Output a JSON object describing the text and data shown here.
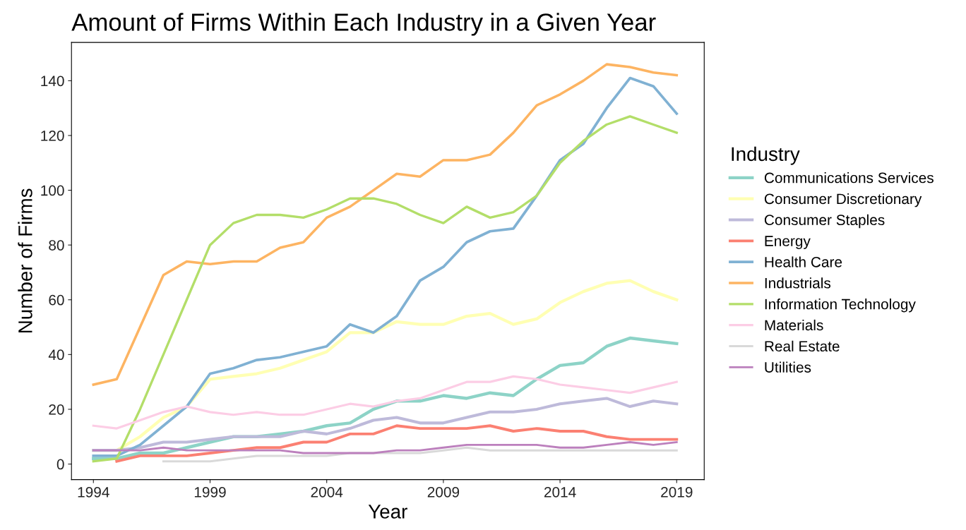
{
  "chart_data": {
    "type": "line",
    "title": "Amount of Firms Within Each Industry in a Given Year",
    "xlabel": "Year",
    "ylabel": "Number of Firms",
    "legend_title": "Industry",
    "legend": "right",
    "grid": false,
    "x": [
      1994,
      1995,
      1996,
      1997,
      1998,
      1999,
      2000,
      2001,
      2002,
      2003,
      2004,
      2005,
      2006,
      2007,
      2008,
      2009,
      2010,
      2011,
      2012,
      2013,
      2014,
      2015,
      2016,
      2017,
      2018,
      2019
    ],
    "xlim": [
      1993.06,
      2020.18
    ],
    "xticks": [
      1994,
      1999,
      2004,
      2009,
      2014,
      2019
    ],
    "ylim": [
      -5.7,
      154
    ],
    "yticks": [
      0,
      20,
      40,
      60,
      80,
      100,
      120,
      140
    ],
    "series": [
      {
        "name": "Communications Services",
        "color": "#8dd3c7",
        "values": [
          2,
          2,
          4,
          4,
          6,
          8,
          10,
          10,
          11,
          12,
          14,
          15,
          20,
          23,
          23,
          25,
          24,
          26,
          25,
          31,
          36,
          37,
          43,
          46,
          45,
          44
        ]
      },
      {
        "name": "Consumer Discretionary",
        "color": "#ffffb3",
        "values": [
          5,
          5,
          10,
          17,
          21,
          31,
          32,
          33,
          35,
          38,
          41,
          48,
          48,
          52,
          51,
          51,
          54,
          55,
          51,
          53,
          59,
          63,
          66,
          67,
          63,
          60
        ]
      },
      {
        "name": "Consumer Staples",
        "color": "#bebada",
        "values": [
          5,
          5,
          6,
          8,
          8,
          9,
          10,
          10,
          10,
          12,
          11,
          13,
          16,
          17,
          15,
          15,
          17,
          19,
          19,
          20,
          22,
          23,
          24,
          21,
          23,
          22
        ]
      },
      {
        "name": "Energy",
        "color": "#fb8072",
        "values": [
          null,
          1,
          3,
          3,
          3,
          4,
          5,
          6,
          6,
          8,
          8,
          11,
          11,
          14,
          13,
          13,
          13,
          14,
          12,
          13,
          12,
          12,
          10,
          9,
          9,
          9
        ]
      },
      {
        "name": "Health Care",
        "color": "#80b1d3",
        "values": [
          3,
          3,
          7,
          14,
          21,
          33,
          35,
          38,
          39,
          41,
          43,
          51,
          48,
          54,
          67,
          72,
          81,
          85,
          86,
          98,
          111,
          117,
          130,
          141,
          138,
          128
        ]
      },
      {
        "name": "Industrials",
        "color": "#fdb462",
        "values": [
          29,
          31,
          50,
          69,
          74,
          73,
          74,
          74,
          79,
          81,
          90,
          94,
          100,
          106,
          105,
          111,
          111,
          113,
          121,
          131,
          135,
          140,
          146,
          145,
          143,
          142
        ]
      },
      {
        "name": "Information Technology",
        "color": "#b3de69",
        "values": [
          1,
          2,
          20,
          40,
          60,
          80,
          88,
          91,
          91,
          90,
          93,
          97,
          97,
          95,
          91,
          88,
          94,
          90,
          92,
          98,
          110,
          118,
          124,
          127,
          124,
          121
        ]
      },
      {
        "name": "Materials",
        "color": "#fccde5",
        "values": [
          14,
          13,
          16,
          19,
          21,
          19,
          18,
          19,
          18,
          18,
          20,
          22,
          21,
          23,
          24,
          27,
          30,
          30,
          32,
          31,
          29,
          28,
          27,
          26,
          28,
          30
        ]
      },
      {
        "name": "Real Estate",
        "color": "#d9d9d9",
        "values": [
          null,
          null,
          null,
          1,
          1,
          1,
          2,
          3,
          3,
          3,
          3,
          4,
          4,
          4,
          4,
          5,
          6,
          5,
          5,
          5,
          5,
          5,
          5,
          5,
          5,
          5
        ]
      },
      {
        "name": "Utilities",
        "color": "#bc80bd",
        "values": [
          5,
          5,
          5,
          6,
          5,
          5,
          5,
          5,
          5,
          4,
          4,
          4,
          4,
          5,
          5,
          6,
          7,
          7,
          7,
          7,
          6,
          6,
          7,
          8,
          7,
          8
        ]
      }
    ]
  }
}
